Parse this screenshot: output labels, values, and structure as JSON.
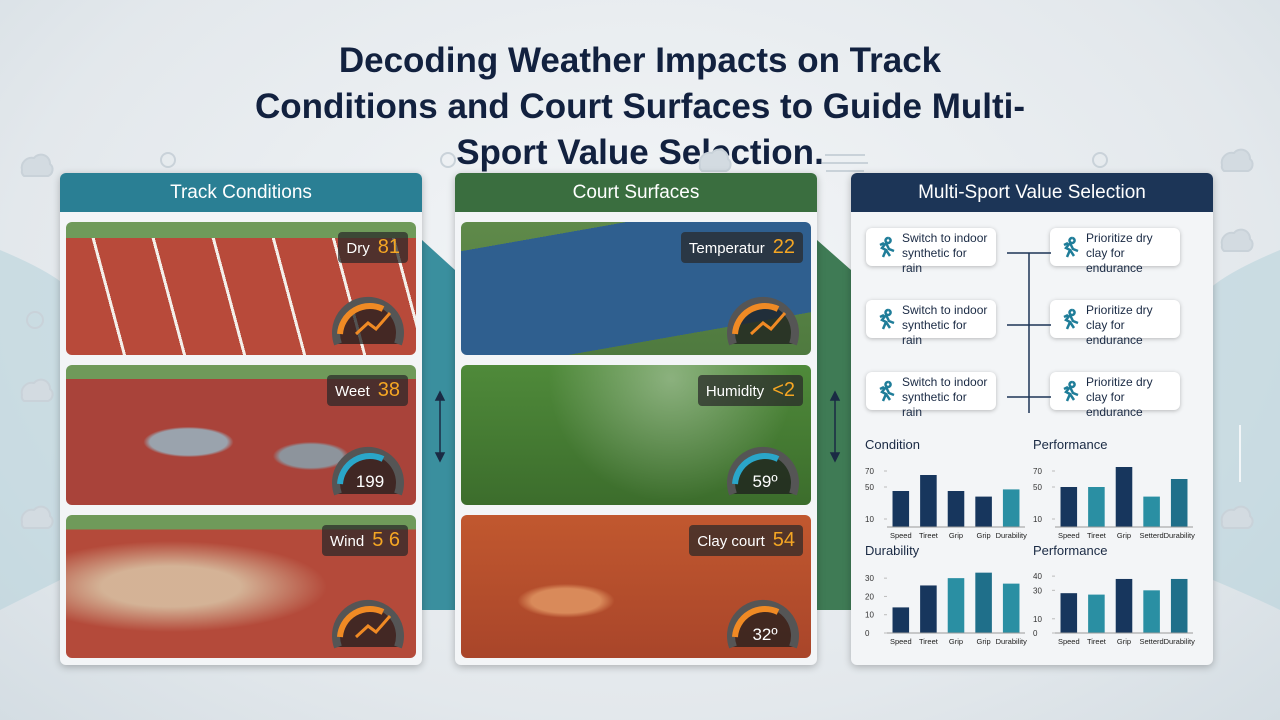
{
  "title": "Decoding Weather Impacts on Track Conditions and Court Surfaces to Guide Multi-Sport Value Selection.",
  "panels": [
    {
      "title": "Track Conditions",
      "cards": [
        {
          "label": "Dry",
          "value": 81
        },
        {
          "label": "Weet",
          "value": 38,
          "gauge": 199
        },
        {
          "label": "Wind",
          "value": "5 6"
        }
      ]
    },
    {
      "title": "Court Surfaces",
      "cards": [
        {
          "label": "Temperatur",
          "value": 22
        },
        {
          "label": "Humidity",
          "value": "<2",
          "gauge": "59º"
        },
        {
          "label": "Clay court",
          "value": 54,
          "gauge": "32º"
        }
      ]
    },
    {
      "title": "Multi-Sport Value Selection",
      "actions": [
        [
          "Switch to indoor synthetic for rain",
          "Prioritize dry clay for endurance"
        ],
        [
          "Switch to indoor synthetic for rain",
          "Prioritize dry clay for endurance"
        ],
        [
          "Switch to indoor synthetic for rain",
          "Prioritize dry clay for endurance"
        ]
      ],
      "charts": [
        {
          "type": "bar",
          "title": "Condition",
          "categories": [
            "Speed",
            "Tireet",
            "Grip",
            "Grip",
            "Durability"
          ],
          "values": [
            45,
            65,
            45,
            38,
            47
          ],
          "colors": [
            "#17365d",
            "#17365d",
            "#17365d",
            "#17365d",
            "#2a8fa3"
          ],
          "ylim": [
            0,
            80
          ],
          "yticks": [
            10,
            50,
            70
          ]
        },
        {
          "type": "bar",
          "title": "Performance",
          "categories": [
            "Speed",
            "Tireet",
            "Grip",
            "Setterd",
            "Durability"
          ],
          "values": [
            50,
            50,
            75,
            38,
            60
          ],
          "colors": [
            "#17365d",
            "#2a8fa3",
            "#17365d",
            "#2a8fa3",
            "#1f6f8a"
          ],
          "ylim": [
            0,
            80
          ],
          "yticks": [
            10,
            50,
            70
          ]
        },
        {
          "type": "bar",
          "title": "Durability",
          "categories": [
            "Speed",
            "Tireet",
            "Grip",
            "Grip",
            "Durability"
          ],
          "values": [
            14,
            26,
            30,
            33,
            27
          ],
          "colors": [
            "#17365d",
            "#17365d",
            "#2a8fa3",
            "#1f6f8a",
            "#2a8fa3"
          ],
          "ylim": [
            0,
            35
          ],
          "yticks": [
            0,
            10,
            20,
            30
          ]
        },
        {
          "type": "bar",
          "title": "Performance",
          "categories": [
            "Speed",
            "Tireet",
            "Grip",
            "Setterd",
            "Durability"
          ],
          "values": [
            28,
            27,
            38,
            30,
            38
          ],
          "colors": [
            "#17365d",
            "#2a8fa3",
            "#17365d",
            "#2a8fa3",
            "#1f6f8a"
          ],
          "ylim": [
            0,
            45
          ],
          "yticks": [
            0,
            10,
            30,
            40
          ]
        }
      ]
    }
  ]
}
